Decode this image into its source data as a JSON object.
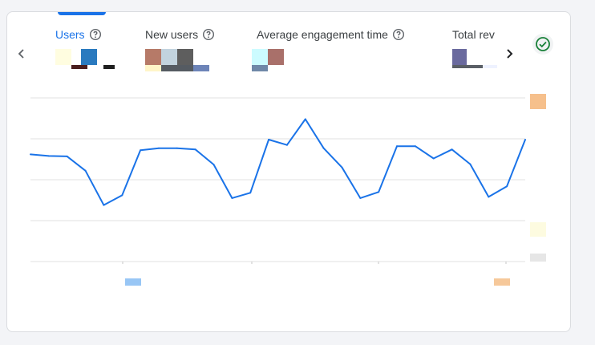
{
  "tabs": [
    {
      "label": "Users",
      "active": true
    },
    {
      "label": "New users",
      "active": false
    },
    {
      "label": "Average engagement time",
      "active": false
    },
    {
      "label": "Total rev",
      "active": false
    }
  ],
  "icons": {
    "prev": "chevron-left-icon",
    "next": "chevron-right-icon",
    "help": "help-circle-icon",
    "status": "check-circle-icon"
  },
  "colors": {
    "accent": "#1a73e8",
    "line": "#1a73e8",
    "status": "#188038",
    "grid": "#e0e0e0"
  },
  "chart_data": {
    "type": "line",
    "grid": true,
    "ylim": [
      0,
      4
    ],
    "series": [
      {
        "values": [
          2.62,
          2.58,
          2.57,
          2.22,
          1.38,
          1.62,
          2.72,
          2.77,
          2.77,
          2.74,
          2.37,
          1.55,
          1.68,
          2.98,
          2.85,
          3.48,
          2.77,
          2.3,
          1.55,
          1.7,
          2.82,
          2.82,
          2.52,
          2.74,
          2.38,
          1.58,
          1.84,
          2.98
        ]
      }
    ]
  }
}
